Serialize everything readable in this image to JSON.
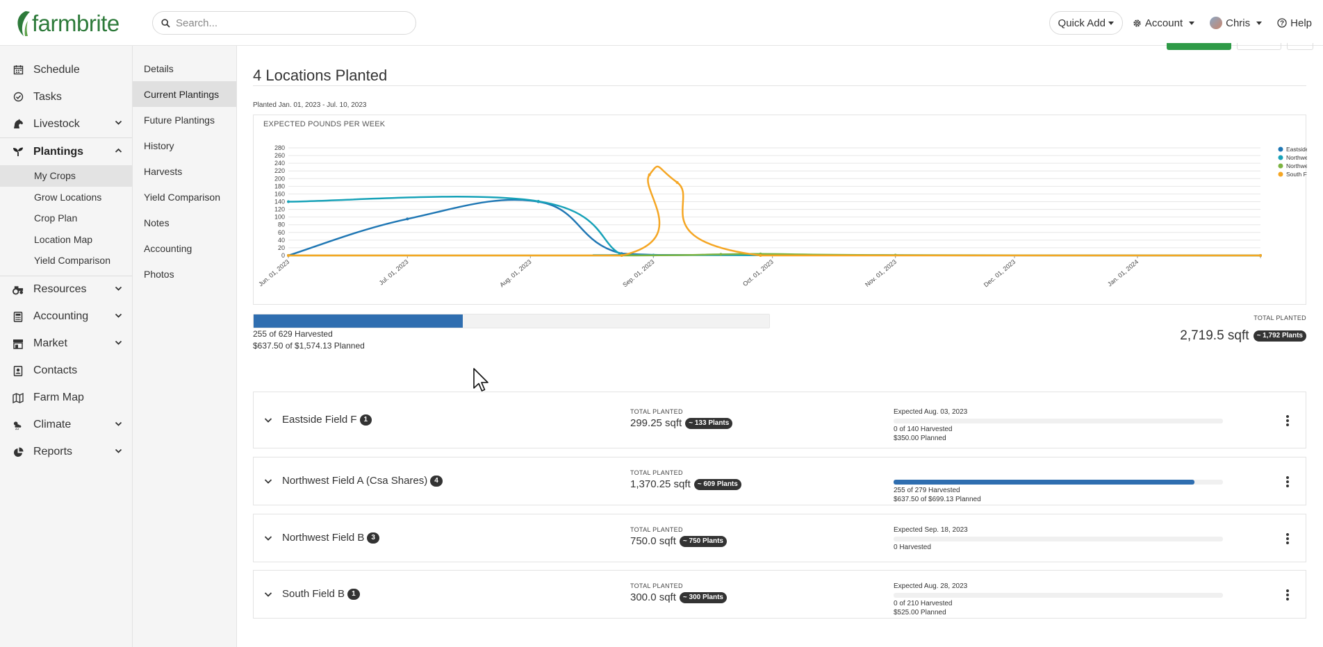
{
  "brand": {
    "name": "farmbrite",
    "color": "#2d7a3a"
  },
  "search": {
    "placeholder": "Search..."
  },
  "topnav": {
    "quick_add": "Quick Add",
    "account": "Account",
    "user": "Chris",
    "help": "Help"
  },
  "sidebar": {
    "items": [
      {
        "label": "Schedule",
        "icon": "calendar-icon"
      },
      {
        "label": "Tasks",
        "icon": "check-circle-icon"
      },
      {
        "label": "Livestock",
        "icon": "horse-icon"
      },
      {
        "label": "Plantings",
        "icon": "sprout-icon"
      },
      {
        "label": "Resources",
        "icon": "tractor-icon"
      },
      {
        "label": "Accounting",
        "icon": "calculator-icon"
      },
      {
        "label": "Market",
        "icon": "store-icon"
      },
      {
        "label": "Contacts",
        "icon": "contact-card-icon"
      },
      {
        "label": "Farm Map",
        "icon": "map-icon"
      },
      {
        "label": "Climate",
        "icon": "cloud-sun-icon"
      },
      {
        "label": "Reports",
        "icon": "pie-chart-icon"
      }
    ],
    "plantings_sub": [
      "My Crops",
      "Grow Locations",
      "Crop Plan",
      "Location Map",
      "Yield Comparison"
    ],
    "active_item": "Plantings",
    "active_sub": "My Crops"
  },
  "subnav": {
    "items": [
      "Details",
      "Current Plantings",
      "Future Plantings",
      "History",
      "Harvests",
      "Yield Comparison",
      "Notes",
      "Accounting",
      "Photos"
    ],
    "active": "Current Plantings"
  },
  "main": {
    "title": "4 Locations Planted",
    "date_range": "Planted Jan. 01, 2023 - Jul. 10, 2023",
    "chart_title": "EXPECTED POUNDS PER WEEK",
    "harvest_progress": 0.405,
    "harvest_count": "255 of 629 Harvested",
    "harvest_amount": "$637.50 of $1,574.13 Planned",
    "total_planted_label": "TOTAL PLANTED",
    "total_planted_value": "2,719.5 sqft",
    "total_planted_plants": "~ 1,792 Plants"
  },
  "chart_data": {
    "type": "line",
    "title": "EXPECTED POUNDS PER WEEK",
    "x_ticks": [
      "Jun. 01, 2023",
      "Jul. 01, 2023",
      "Aug. 01, 2023",
      "Sep. 01, 2023",
      "Oct. 01, 2023",
      "Nov. 01, 2023",
      "Dec. 01, 2023",
      "Jan. 01, 2024"
    ],
    "y_ticks": [
      0,
      20,
      40,
      60,
      80,
      100,
      120,
      140,
      160,
      180,
      200,
      220,
      240,
      260,
      280
    ],
    "ylim": [
      0,
      280
    ],
    "xlim": [
      "2023-06-01",
      "2024-02-01"
    ],
    "grid": true,
    "legend_position": "top-right",
    "series": [
      {
        "name": "Eastside Field F",
        "color": "#1f77b4",
        "points": [
          [
            "2023-06-01",
            0
          ],
          [
            "2023-07-01",
            95
          ],
          [
            "2023-08-03",
            140
          ],
          [
            "2023-08-24",
            5
          ],
          [
            "2023-09-28",
            1
          ],
          [
            "2024-02-01",
            0
          ]
        ]
      },
      {
        "name": "Northwest Field",
        "color": "#17a2b8",
        "points": [
          [
            "2023-06-01",
            140
          ],
          [
            "2023-08-03",
            141
          ],
          [
            "2023-08-24",
            2
          ],
          [
            "2023-09-01",
            1
          ],
          [
            "2024-02-01",
            0
          ]
        ]
      },
      {
        "name": "Northwest Field",
        "color": "#7cb342",
        "points": [
          [
            "2023-06-01",
            0
          ],
          [
            "2023-08-24",
            0
          ],
          [
            "2023-09-18",
            3
          ],
          [
            "2023-09-28",
            4
          ],
          [
            "2023-11-01",
            1
          ],
          [
            "2024-02-01",
            0
          ]
        ]
      },
      {
        "name": "South Field B",
        "color": "#f5a623",
        "points": [
          [
            "2023-06-01",
            0
          ],
          [
            "2023-08-24",
            0
          ],
          [
            "2023-08-31",
            210
          ],
          [
            "2023-09-07",
            190
          ],
          [
            "2023-09-28",
            0
          ],
          [
            "2024-02-01",
            0
          ]
        ]
      }
    ]
  },
  "locations": [
    {
      "name": "Eastside Field F",
      "count": "1",
      "tp_label": "TOTAL PLANTED",
      "area": "299.25 sqft",
      "plants": "~ 133 Plants",
      "expected": "Expected Aug. 03, 2023",
      "progress": 0,
      "line1": "0 of 140 Harvested",
      "line2": "$350.00 Planned"
    },
    {
      "name": "Northwest Field A (Csa Shares)",
      "count": "4",
      "tp_label": "TOTAL PLANTED",
      "area": "1,370.25 sqft",
      "plants": "~ 609 Plants",
      "expected": "",
      "progress": 0.914,
      "line1": "255 of 279 Harvested",
      "line2": "$637.50 of $699.13 Planned"
    },
    {
      "name": "Northwest Field B",
      "count": "3",
      "tp_label": "TOTAL PLANTED",
      "area": "750.0 sqft",
      "plants": "~ 750 Plants",
      "expected": "Expected Sep. 18, 2023",
      "progress": 0,
      "line1": "0 Harvested",
      "line2": ""
    },
    {
      "name": "South Field B",
      "count": "1",
      "tp_label": "TOTAL PLANTED",
      "area": "300.0 sqft",
      "plants": "~ 300 Plants",
      "expected": "Expected Aug. 28, 2023",
      "progress": 0,
      "line1": "0 of 210 Harvested",
      "line2": "$525.00 Planned"
    }
  ]
}
